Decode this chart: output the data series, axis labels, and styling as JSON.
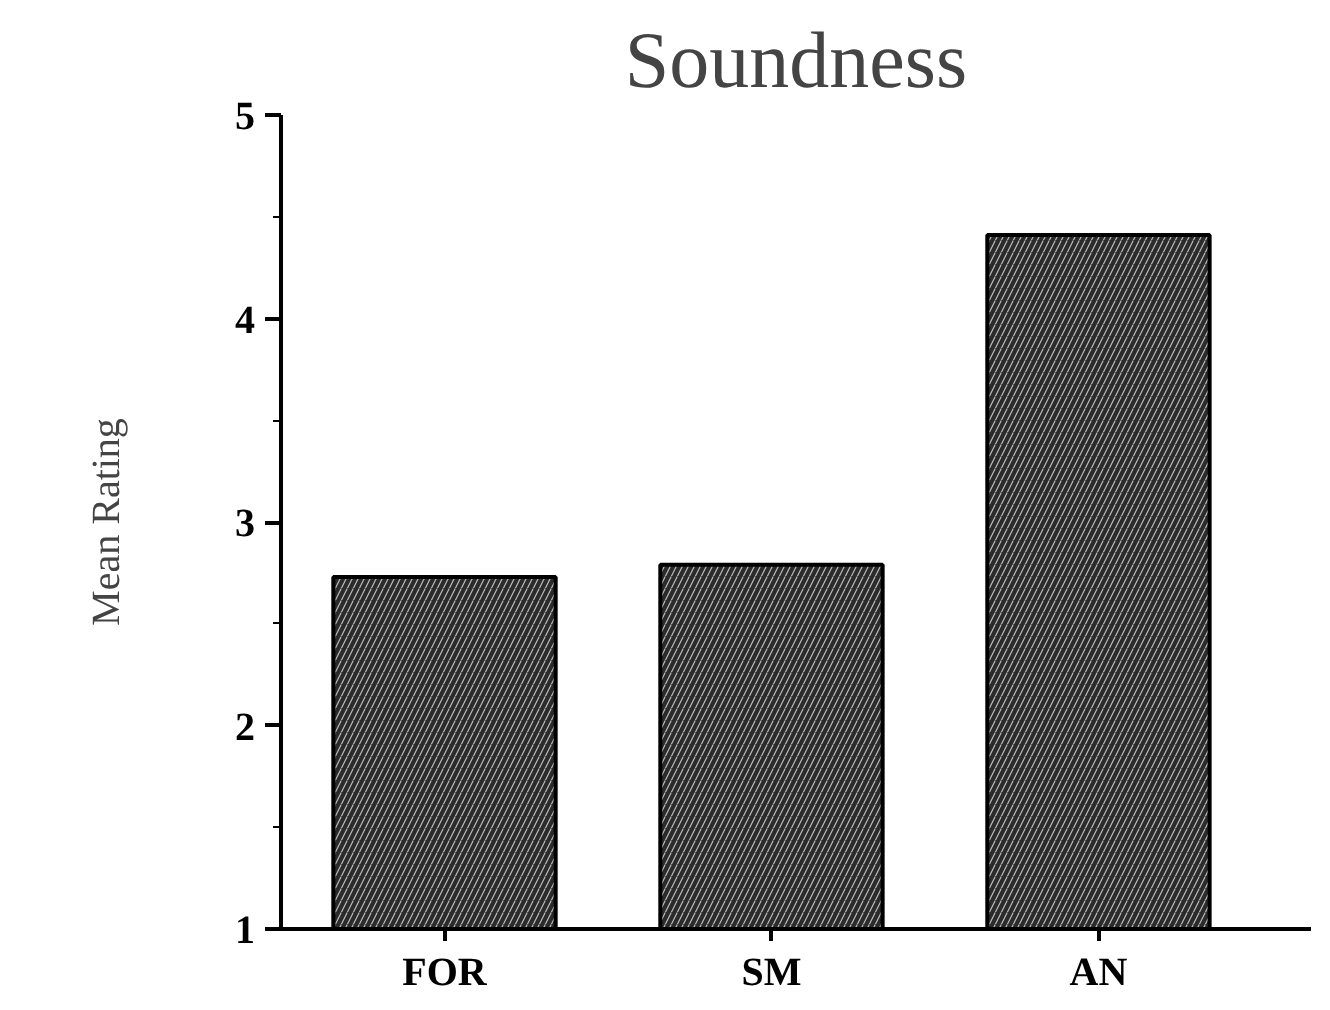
{
  "chart_data": {
    "type": "bar",
    "title": "Soundness",
    "ylabel": "Mean Rating",
    "categories": [
      "FOR",
      "SM",
      "AN"
    ],
    "values": [
      2.73,
      2.79,
      4.41
    ],
    "color": "#2b2b2b",
    "ylim": [
      1,
      5
    ],
    "yticks": [
      1,
      2,
      3,
      4,
      5
    ],
    "grid": false
  }
}
